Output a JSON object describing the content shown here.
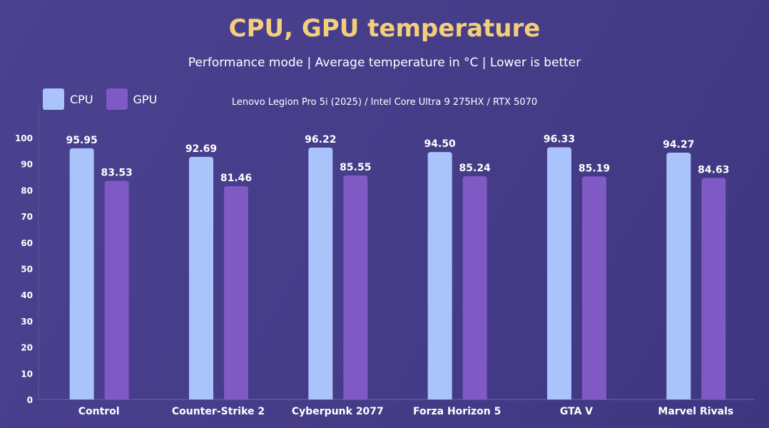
{
  "colors": {
    "cpu": "#aac3fa",
    "gpu": "#7f59c4",
    "title": "#f4cf7b"
  },
  "chart_data": {
    "type": "bar",
    "title": "CPU, GPU temperature",
    "subtitle": "Performance mode | Average temperature in °C | Lower is better",
    "note": "Lenovo Legion Pro 5i (2025) / Intel Core Ultra 9 275HX / RTX 5070",
    "categories": [
      "Control",
      "Counter-Strike 2",
      "Cyberpunk 2077",
      "Forza Horizon 5",
      "GTA V",
      "Marvel Rivals"
    ],
    "series": [
      {
        "name": "CPU",
        "values": [
          95.95,
          92.69,
          96.22,
          94.5,
          96.33,
          94.27
        ]
      },
      {
        "name": "GPU",
        "values": [
          83.53,
          81.46,
          85.55,
          85.24,
          85.19,
          84.63
        ]
      }
    ],
    "ylim": [
      0,
      100
    ],
    "yticks": [
      0,
      10,
      20,
      30,
      40,
      50,
      60,
      70,
      80,
      90,
      100
    ],
    "legend": "top-left",
    "grid": false
  }
}
